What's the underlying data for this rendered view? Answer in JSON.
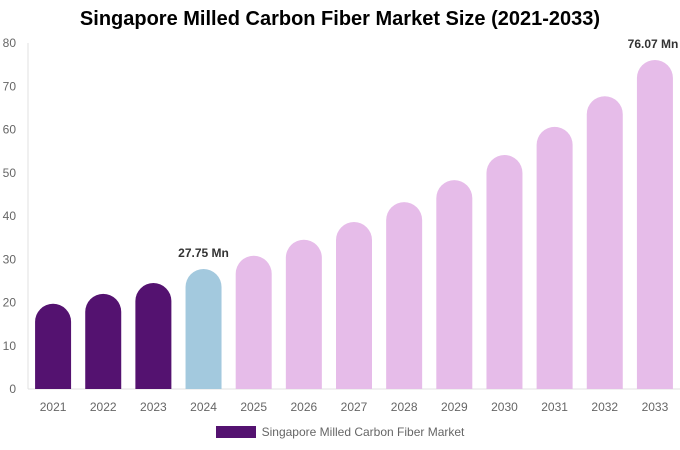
{
  "chart_data": {
    "type": "bar",
    "title": "Singapore Milled Carbon Fiber Market Size (2021-2033)",
    "categories": [
      "2021",
      "2022",
      "2023",
      "2024",
      "2025",
      "2026",
      "2027",
      "2028",
      "2029",
      "2030",
      "2031",
      "2032",
      "2033"
    ],
    "series": [
      {
        "name": "Singapore Milled Carbon Fiber Market",
        "values": [
          19.7,
          22.0,
          24.5,
          27.75,
          30.8,
          34.5,
          38.6,
          43.2,
          48.3,
          54.1,
          60.6,
          67.7,
          76.07
        ]
      }
    ],
    "data_labels": {
      "3": "27.75 Mn",
      "12": "76.07 Mn"
    },
    "ylim": [
      0,
      80
    ],
    "yticks": [
      0,
      10,
      20,
      30,
      40,
      50,
      60,
      70,
      80
    ],
    "grid": false,
    "legend_position": "bottom",
    "colors": {
      "historical": "#541270",
      "base_year": "#a3c9de",
      "forecast": "#e6bce9"
    },
    "color_groups": [
      "historical",
      "historical",
      "historical",
      "base_year",
      "forecast",
      "forecast",
      "forecast",
      "forecast",
      "forecast",
      "forecast",
      "forecast",
      "forecast",
      "forecast"
    ]
  }
}
